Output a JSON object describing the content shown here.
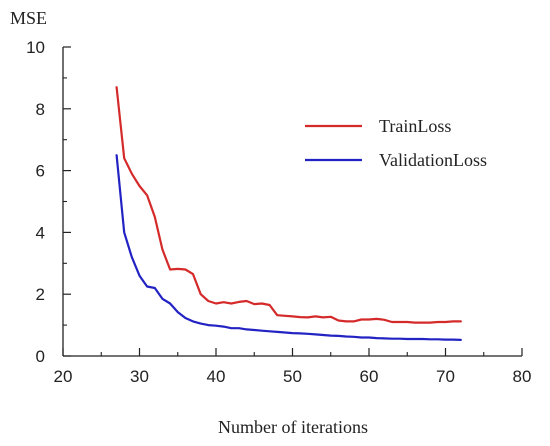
{
  "chart_data": {
    "type": "line",
    "title": "",
    "xlabel": "Number of iterations",
    "ylabel": "MSE",
    "xlim": [
      20,
      80
    ],
    "ylim": [
      0,
      10
    ],
    "x_ticks": [
      20,
      30,
      40,
      50,
      60,
      70,
      80
    ],
    "y_ticks": [
      0,
      2,
      4,
      6,
      8,
      10
    ],
    "grid": false,
    "legend_position": "top-right",
    "series": [
      {
        "name": "TrainLoss",
        "color": "#d42a2a",
        "x": [
          27,
          28,
          29,
          30,
          31,
          32,
          33,
          34,
          35,
          36,
          37,
          38,
          39,
          40,
          41,
          42,
          43,
          44,
          45,
          46,
          47,
          48,
          49,
          50,
          51,
          52,
          53,
          54,
          55,
          56,
          57,
          58,
          59,
          60,
          61,
          62,
          63,
          64,
          65,
          66,
          67,
          68,
          69,
          70,
          71,
          72
        ],
        "values": [
          8.7,
          6.4,
          5.9,
          5.5,
          5.2,
          4.5,
          3.45,
          2.8,
          2.82,
          2.8,
          2.65,
          2.0,
          1.78,
          1.7,
          1.74,
          1.7,
          1.75,
          1.78,
          1.68,
          1.7,
          1.65,
          1.32,
          1.3,
          1.28,
          1.26,
          1.25,
          1.28,
          1.25,
          1.27,
          1.15,
          1.12,
          1.12,
          1.18,
          1.18,
          1.2,
          1.17,
          1.1,
          1.1,
          1.1,
          1.08,
          1.08,
          1.08,
          1.1,
          1.1,
          1.12,
          1.12
        ]
      },
      {
        "name": "ValidationLoss",
        "color": "#2323c4",
        "x": [
          27,
          28,
          29,
          30,
          31,
          32,
          33,
          34,
          35,
          36,
          37,
          38,
          39,
          40,
          41,
          42,
          43,
          44,
          45,
          46,
          47,
          48,
          49,
          50,
          51,
          52,
          53,
          54,
          55,
          56,
          57,
          58,
          59,
          60,
          61,
          62,
          63,
          64,
          65,
          66,
          67,
          68,
          69,
          70,
          71,
          72
        ],
        "values": [
          6.5,
          4.0,
          3.2,
          2.6,
          2.25,
          2.2,
          1.85,
          1.7,
          1.42,
          1.23,
          1.12,
          1.05,
          1.0,
          0.98,
          0.95,
          0.9,
          0.9,
          0.86,
          0.84,
          0.82,
          0.8,
          0.78,
          0.76,
          0.74,
          0.73,
          0.72,
          0.7,
          0.68,
          0.66,
          0.65,
          0.63,
          0.62,
          0.6,
          0.6,
          0.58,
          0.57,
          0.56,
          0.56,
          0.55,
          0.55,
          0.55,
          0.54,
          0.54,
          0.53,
          0.53,
          0.52
        ]
      }
    ]
  }
}
